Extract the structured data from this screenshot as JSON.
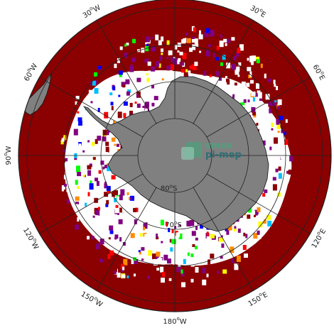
{
  "map": {
    "projection": "south-polar-stereographic",
    "colors": {
      "ocean_fill": "#8b0000",
      "sea_ice": "#ffffff",
      "land": "#808080",
      "graticule": "#222222",
      "speckle": [
        "#ffffff",
        "#800080",
        "#ff0000",
        "#ffff00",
        "#00ff00",
        "#0000ff",
        "#ff8c00",
        "#00bfff"
      ]
    },
    "longitude_labels": [
      {
        "deg": "30",
        "sup": "o",
        "hem": "W",
        "lon": -30
      },
      {
        "deg": "30",
        "sup": "o",
        "hem": "E",
        "lon": 30
      },
      {
        "deg": "60",
        "sup": "o",
        "hem": "W",
        "lon": -60
      },
      {
        "deg": "60",
        "sup": "o",
        "hem": "E",
        "lon": 60
      },
      {
        "deg": "90",
        "sup": "o",
        "hem": "W",
        "lon": -90
      },
      {
        "deg": "120",
        "sup": "o",
        "hem": "W",
        "lon": -120
      },
      {
        "deg": "120",
        "sup": "o",
        "hem": "E",
        "lon": 120
      },
      {
        "deg": "150",
        "sup": "o",
        "hem": "W",
        "lon": -150
      },
      {
        "deg": "150",
        "sup": "o",
        "hem": "E",
        "lon": 150
      },
      {
        "deg": "180",
        "sup": "o",
        "hem": "W",
        "lon": 180
      }
    ],
    "latitude_labels": [
      {
        "deg": "70",
        "sup": "o",
        "hem": "S",
        "lat": -70
      },
      {
        "deg": "80",
        "sup": "o",
        "hem": "S",
        "lat": -80
      }
    ],
    "parallels": [
      -50,
      -60,
      -70,
      -80
    ],
    "meridians": [
      0,
      30,
      60,
      90,
      120,
      150,
      180,
      -150,
      -120,
      -90,
      -60,
      -30
    ]
  },
  "watermark": {
    "line1": "smos",
    "line2": "pi-mep",
    "logo_icon": "smos-pimep-logo-icon"
  }
}
